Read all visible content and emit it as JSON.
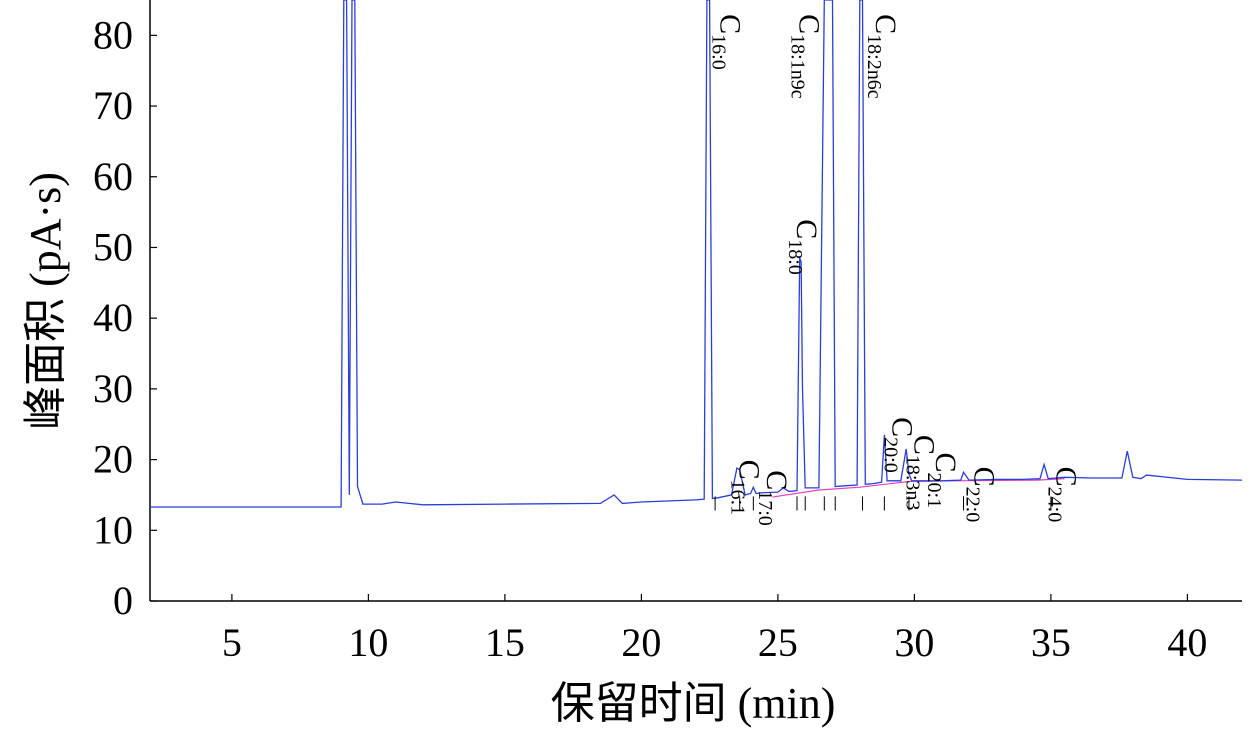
{
  "chart_data": {
    "type": "line",
    "title": "",
    "xlabel": "保留时间 (min)",
    "ylabel": "峰面积 (pA·s)",
    "xlim": [
      2,
      42
    ],
    "ylim": [
      0,
      85
    ],
    "xticks": [
      5,
      10,
      15,
      20,
      25,
      30,
      35,
      40
    ],
    "yticks": [
      0,
      10,
      20,
      30,
      40,
      50,
      60,
      70,
      80
    ],
    "xtick_labels": [
      "5",
      "10",
      "15",
      "20",
      "25",
      "30",
      "35",
      "40"
    ],
    "ytick_labels": [
      "0",
      "10",
      "20",
      "30",
      "40",
      "50",
      "60",
      "70",
      "80"
    ],
    "grid": false,
    "colors": {
      "signal": "#2b3fd6",
      "baseline": "#e040c0",
      "marker": "#000000"
    },
    "series": [
      {
        "values_note_free": true,
        "x": [
          2.0,
          9.0,
          9.1,
          9.2,
          9.3,
          9.4,
          9.5,
          9.6,
          9.8,
          10.5,
          11.0,
          12.0,
          15.0,
          18.5,
          19.0,
          19.3,
          20.0,
          22.0,
          22.3,
          22.4,
          22.5,
          22.6,
          22.8,
          23.3,
          23.5,
          23.6,
          23.8,
          24.0,
          24.1,
          24.2,
          24.4,
          25.0,
          25.2,
          25.4,
          25.7,
          25.8,
          25.85,
          25.9,
          26.0,
          26.5,
          26.7,
          26.8,
          26.9,
          27.0,
          27.1,
          27.5,
          27.9,
          28.0,
          28.1,
          28.2,
          28.5,
          28.8,
          28.9,
          29.0,
          29.5,
          29.7,
          29.8,
          29.9,
          30.2,
          31.0,
          31.7,
          31.8,
          32.0,
          33.0,
          34.0,
          34.6,
          34.75,
          34.9,
          35.5,
          36.5,
          37.6,
          37.8,
          38.0,
          38.3,
          38.5,
          40.0,
          42.0
        ],
        "y": [
          13.3,
          13.3,
          85,
          85,
          15,
          85,
          85,
          16.2,
          13.7,
          13.7,
          14.0,
          13.6,
          13.7,
          13.8,
          15.0,
          13.8,
          14.0,
          14.3,
          14.4,
          85,
          85,
          14.5,
          14.6,
          15.0,
          18.8,
          18.6,
          15.0,
          15.2,
          16.1,
          15.2,
          15.3,
          15.4,
          16.0,
          15.5,
          15.6,
          48.5,
          48.0,
          30.0,
          16.0,
          16.0,
          85,
          85,
          85,
          85,
          16.2,
          16.3,
          16.4,
          85,
          85,
          16.5,
          16.6,
          16.8,
          23.5,
          17.0,
          17.0,
          21.5,
          18.0,
          17.0,
          17.0,
          17.0,
          17.1,
          18.2,
          17.1,
          17.2,
          17.2,
          17.3,
          19.3,
          17.3,
          17.5,
          17.4,
          17.4,
          21.2,
          17.5,
          17.3,
          17.8,
          17.2,
          17.1
        ]
      }
    ],
    "annotations": [
      {
        "base": "C",
        "sub": "16:0",
        "x": 22.9,
        "y": 83,
        "rotate": true
      },
      {
        "base": "C",
        "sub": "18:1n9c",
        "x": 25.8,
        "y": 83,
        "rotate": true
      },
      {
        "base": "C",
        "sub": "18:2n6c",
        "x": 28.6,
        "y": 83,
        "rotate": true
      },
      {
        "base": "C",
        "sub": "18:0",
        "x": 25.7,
        "y": 54,
        "rotate": true
      },
      {
        "base": "C",
        "sub": "16:1",
        "x": 23.6,
        "y": 20,
        "rotate": true
      },
      {
        "base": "C",
        "sub": "17:0",
        "x": 24.6,
        "y": 18.5,
        "rotate": true
      },
      {
        "base": "C",
        "sub": "20:0",
        "x": 29.2,
        "y": 26,
        "rotate": true
      },
      {
        "base": "C",
        "sub": "18:3n3",
        "x": 30.0,
        "y": 23.5,
        "rotate": true
      },
      {
        "base": "C",
        "sub": "20:1",
        "x": 30.8,
        "y": 21,
        "rotate": true
      },
      {
        "base": "C",
        "sub": "22:0",
        "x": 32.2,
        "y": 19,
        "rotate": true
      },
      {
        "base": "C",
        "sub": "24:0",
        "x": 35.2,
        "y": 19,
        "rotate": true
      }
    ],
    "peak_markers_x": [
      22.7,
      23.6,
      24.1,
      25.7,
      26.0,
      26.7,
      27.1,
      28.1,
      28.9,
      29.8,
      31.8,
      35.0
    ]
  }
}
